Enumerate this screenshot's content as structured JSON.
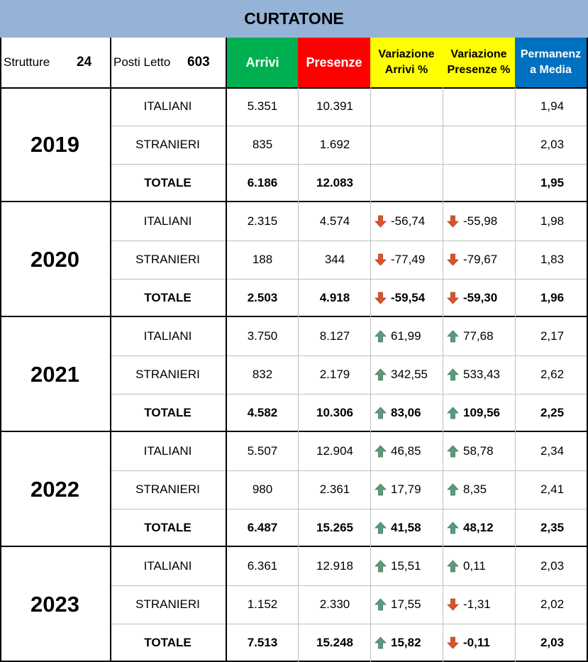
{
  "title": "CURTATONE",
  "header": {
    "strutture_label": "Strutture",
    "strutture_value": "24",
    "posti_label": "Posti Letto",
    "posti_value": "603",
    "arrivi": "Arrivi",
    "presenze": "Presenze",
    "var_arrivi_1": "Variazione",
    "var_arrivi_2": "Arrivi %",
    "var_presenze_1": "Variazione",
    "var_presenze_2": "Presenze %",
    "perm_1": "Permanenz",
    "perm_2": "a Media"
  },
  "colors": {
    "title_bg": "#95b3d7",
    "arrivi_bg": "#00b050",
    "presenze_bg": "#ff0000",
    "variation_bg": "#ffff00",
    "permanenza_bg": "#0070c0",
    "up_arrow": "#5b9b7c",
    "down_arrow": "#d9542b"
  },
  "years": [
    {
      "year": "2019",
      "rows": [
        {
          "label": "ITALIANI",
          "arrivi": "5.351",
          "presenze": "10.391",
          "var_arrivi": "",
          "dir_arrivi": "",
          "var_presenze": "",
          "dir_presenze": "",
          "permanenza": "1,94"
        },
        {
          "label": "STRANIERI",
          "arrivi": "835",
          "presenze": "1.692",
          "var_arrivi": "",
          "dir_arrivi": "",
          "var_presenze": "",
          "dir_presenze": "",
          "permanenza": "2,03"
        },
        {
          "label": "TOTALE",
          "arrivi": "6.186",
          "presenze": "12.083",
          "var_arrivi": "",
          "dir_arrivi": "",
          "var_presenze": "",
          "dir_presenze": "",
          "permanenza": "1,95"
        }
      ]
    },
    {
      "year": "2020",
      "rows": [
        {
          "label": "ITALIANI",
          "arrivi": "2.315",
          "presenze": "4.574",
          "var_arrivi": "-56,74",
          "dir_arrivi": "down",
          "var_presenze": "-55,98",
          "dir_presenze": "down",
          "permanenza": "1,98"
        },
        {
          "label": "STRANIERI",
          "arrivi": "188",
          "presenze": "344",
          "var_arrivi": "-77,49",
          "dir_arrivi": "down",
          "var_presenze": "-79,67",
          "dir_presenze": "down",
          "permanenza": "1,83"
        },
        {
          "label": "TOTALE",
          "arrivi": "2.503",
          "presenze": "4.918",
          "var_arrivi": "-59,54",
          "dir_arrivi": "down",
          "var_presenze": "-59,30",
          "dir_presenze": "down",
          "permanenza": "1,96"
        }
      ]
    },
    {
      "year": "2021",
      "rows": [
        {
          "label": "ITALIANI",
          "arrivi": "3.750",
          "presenze": "8.127",
          "var_arrivi": "61,99",
          "dir_arrivi": "up",
          "var_presenze": "77,68",
          "dir_presenze": "up",
          "permanenza": "2,17"
        },
        {
          "label": "STRANIERI",
          "arrivi": "832",
          "presenze": "2.179",
          "var_arrivi": "342,55",
          "dir_arrivi": "up",
          "var_presenze": "533,43",
          "dir_presenze": "up",
          "permanenza": "2,62"
        },
        {
          "label": "TOTALE",
          "arrivi": "4.582",
          "presenze": "10.306",
          "var_arrivi": "83,06",
          "dir_arrivi": "up",
          "var_presenze": "109,56",
          "dir_presenze": "up",
          "permanenza": "2,25"
        }
      ]
    },
    {
      "year": "2022",
      "rows": [
        {
          "label": "ITALIANI",
          "arrivi": "5.507",
          "presenze": "12.904",
          "var_arrivi": "46,85",
          "dir_arrivi": "up",
          "var_presenze": "58,78",
          "dir_presenze": "up",
          "permanenza": "2,34"
        },
        {
          "label": "STRANIERI",
          "arrivi": "980",
          "presenze": "2.361",
          "var_arrivi": "17,79",
          "dir_arrivi": "up",
          "var_presenze": "8,35",
          "dir_presenze": "up",
          "permanenza": "2,41"
        },
        {
          "label": "TOTALE",
          "arrivi": "6.487",
          "presenze": "15.265",
          "var_arrivi": "41,58",
          "dir_arrivi": "up",
          "var_presenze": "48,12",
          "dir_presenze": "up",
          "permanenza": "2,35"
        }
      ]
    },
    {
      "year": "2023",
      "rows": [
        {
          "label": "ITALIANI",
          "arrivi": "6.361",
          "presenze": "12.918",
          "var_arrivi": "15,51",
          "dir_arrivi": "up",
          "var_presenze": "0,11",
          "dir_presenze": "up",
          "permanenza": "2,03"
        },
        {
          "label": "STRANIERI",
          "arrivi": "1.152",
          "presenze": "2.330",
          "var_arrivi": "17,55",
          "dir_arrivi": "up",
          "var_presenze": "-1,31",
          "dir_presenze": "down",
          "permanenza": "2,02"
        },
        {
          "label": "TOTALE",
          "arrivi": "7.513",
          "presenze": "15.248",
          "var_arrivi": "15,82",
          "dir_arrivi": "up",
          "var_presenze": "-0,11",
          "dir_presenze": "down",
          "permanenza": "2,03"
        }
      ]
    }
  ]
}
